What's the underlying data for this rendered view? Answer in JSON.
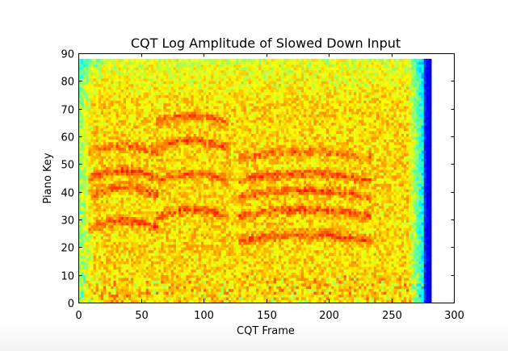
{
  "chart_data": {
    "type": "heatmap",
    "title": "CQT Log Amplitude of Slowed Down Input",
    "xlabel": "CQT Frame",
    "ylabel": "Piano Key",
    "xlim": [
      0,
      300
    ],
    "ylim": [
      0,
      90
    ],
    "xticks": [
      "0",
      "50",
      "100",
      "150",
      "200",
      "250",
      "300"
    ],
    "yticks": [
      "0",
      "10",
      "20",
      "30",
      "40",
      "50",
      "60",
      "70",
      "80",
      "90"
    ],
    "data_extent": {
      "frames": [
        0,
        282
      ],
      "keys": [
        0,
        88
      ]
    },
    "colormap": "jet",
    "dark_edge_frames": [
      276,
      282
    ],
    "formant_bands": [
      {
        "frames": [
          10,
          60
        ],
        "center_key": 27,
        "intensity": 0.9
      },
      {
        "frames": [
          10,
          60
        ],
        "center_key": 39,
        "intensity": 0.85
      },
      {
        "frames": [
          10,
          60
        ],
        "center_key": 45,
        "intensity": 0.85
      },
      {
        "frames": [
          10,
          60
        ],
        "center_key": 54,
        "intensity": 0.6
      },
      {
        "frames": [
          65,
          115
        ],
        "center_key": 31,
        "intensity": 0.85
      },
      {
        "frames": [
          65,
          115
        ],
        "center_key": 44,
        "intensity": 0.8
      },
      {
        "frames": [
          65,
          115
        ],
        "center_key": 56,
        "intensity": 0.85
      },
      {
        "frames": [
          65,
          115
        ],
        "center_key": 65,
        "intensity": 0.7
      },
      {
        "frames": [
          130,
          230
        ],
        "center_key": 22,
        "intensity": 0.9
      },
      {
        "frames": [
          130,
          230
        ],
        "center_key": 31,
        "intensity": 0.85
      },
      {
        "frames": [
          130,
          230
        ],
        "center_key": 38,
        "intensity": 0.8
      },
      {
        "frames": [
          130,
          230
        ],
        "center_key": 44,
        "intensity": 0.8
      },
      {
        "frames": [
          130,
          230
        ],
        "center_key": 52,
        "intensity": 0.7
      }
    ]
  }
}
